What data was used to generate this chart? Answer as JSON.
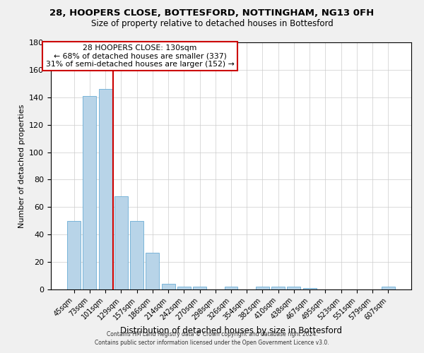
{
  "title": "28, HOOPERS CLOSE, BOTTESFORD, NOTTINGHAM, NG13 0FH",
  "subtitle": "Size of property relative to detached houses in Bottesford",
  "xlabel": "Distribution of detached houses by size in Bottesford",
  "ylabel": "Number of detached properties",
  "categories": [
    "45sqm",
    "73sqm",
    "101sqm",
    "129sqm",
    "157sqm",
    "186sqm",
    "214sqm",
    "242sqm",
    "270sqm",
    "298sqm",
    "326sqm",
    "354sqm",
    "382sqm",
    "410sqm",
    "438sqm",
    "467sqm",
    "495sqm",
    "523sqm",
    "551sqm",
    "579sqm",
    "607sqm"
  ],
  "values": [
    50,
    141,
    146,
    68,
    50,
    27,
    4,
    2,
    2,
    0,
    2,
    0,
    2,
    2,
    2,
    1,
    0,
    0,
    0,
    0,
    2
  ],
  "bar_color": "#b8d4e8",
  "bar_edge_color": "#6aadd5",
  "ylim": [
    0,
    180
  ],
  "yticks": [
    0,
    20,
    40,
    60,
    80,
    100,
    120,
    140,
    160,
    180
  ],
  "vline_x": 2.5,
  "vline_color": "#cc0000",
  "annotation_title": "28 HOOPERS CLOSE: 130sqm",
  "annotation_line1": "← 68% of detached houses are smaller (337)",
  "annotation_line2": "31% of semi-detached houses are larger (152) →",
  "annotation_box_color": "#ffffff",
  "annotation_box_edge": "#cc0000",
  "footer_line1": "Contains HM Land Registry data © Crown copyright and database right 2024.",
  "footer_line2": "Contains public sector information licensed under the Open Government Licence v3.0.",
  "background_color": "#f0f0f0",
  "plot_background": "#ffffff",
  "grid_color": "#cccccc",
  "title_fontsize": 9.5,
  "subtitle_fontsize": 8.5
}
